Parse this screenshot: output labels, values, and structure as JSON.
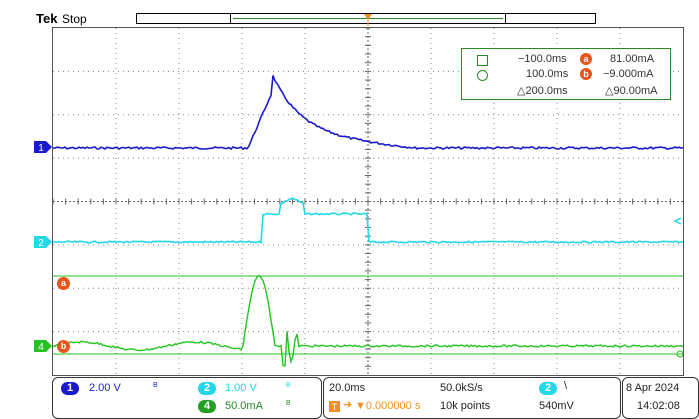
{
  "header": {
    "brand": "Tek",
    "run_state": "Stop"
  },
  "cursor_readout": {
    "a_time": "−100.0ms",
    "a_value": "81.00mA",
    "b_time": "100.0ms",
    "b_value": "−9.000mA",
    "delta_time": "△200.0ms",
    "delta_value": "△90.00mA",
    "badge_a": "a",
    "badge_b": "b"
  },
  "channel_markers": {
    "ch1": "1",
    "ch2": "2",
    "ch4": "4",
    "trigger": "T"
  },
  "bottom": {
    "ch1_num": "1",
    "ch1_scale": "2.00 V",
    "ch2_num": "2",
    "ch2_scale": "1.00 V",
    "ch4_num": "4",
    "ch4_scale": "50.0mA",
    "bw_symbol": "B",
    "timebase": "20.0ms",
    "sample_rate": "50.0kS/s",
    "trigger_position": "▼0.000000 s",
    "record_length": "10k points",
    "trigger_source": "2",
    "trigger_slope": "\\",
    "trigger_level": "540mV",
    "date": "8 Apr  2024",
    "time": "14:02:08"
  },
  "colors": {
    "ch1": "#1a1acc",
    "ch2": "#22d8e8",
    "ch4": "#22c422",
    "cursor": "#22c422",
    "badge": "#e8541a",
    "trigger": "#f09020",
    "grid": "#888888"
  }
}
